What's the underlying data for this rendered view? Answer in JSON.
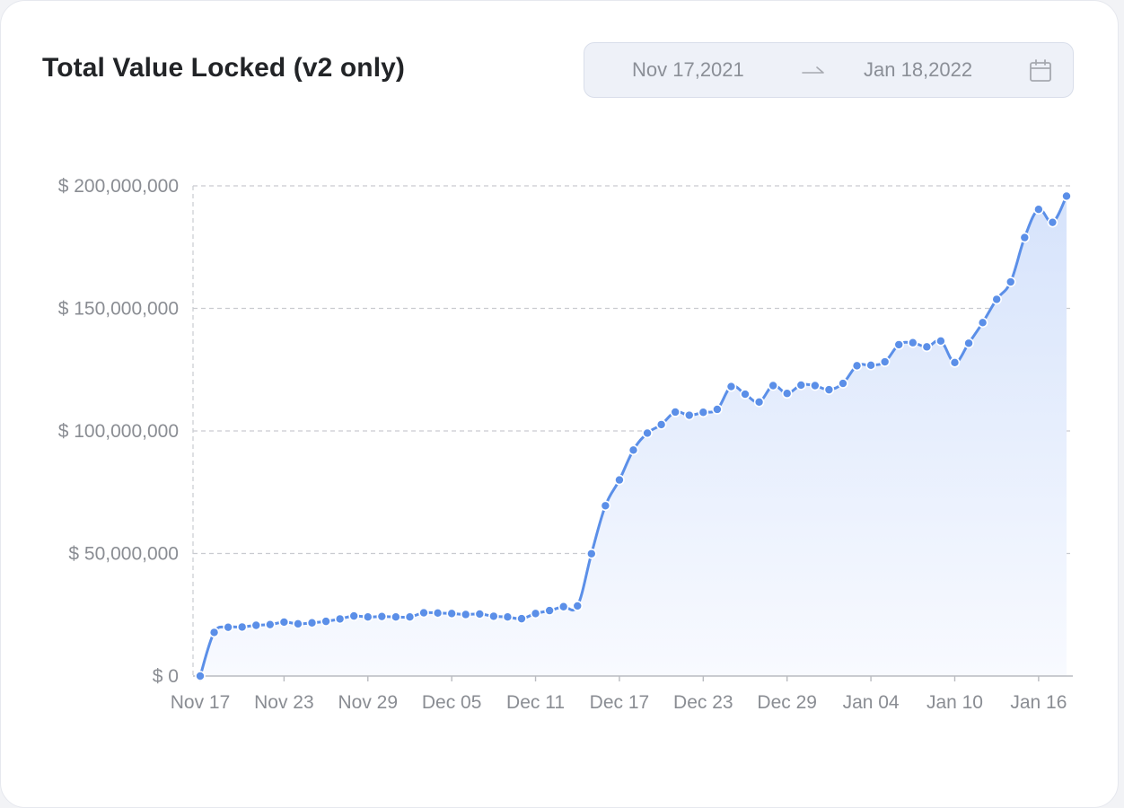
{
  "title": "Total Value Locked (v2 only)",
  "date_range": {
    "start": "Nov 17,2021",
    "end": "Jan 18,2022"
  },
  "icons": {
    "arrow": "arrow-right-icon",
    "calendar": "calendar-icon"
  },
  "colors": {
    "line": "#5b8fe8",
    "area_top": "#d6e3fb",
    "area_bottom": "#f8faff",
    "grid": "#c9cbd0",
    "axis_text": "#8a8d93"
  },
  "chart_data": {
    "type": "area",
    "title": "Total Value Locked (v2 only)",
    "xlabel": "",
    "ylabel": "",
    "x_start": "Nov 17",
    "x_ticks": [
      "Nov 17",
      "Nov 23",
      "Nov 29",
      "Dec 05",
      "Dec 11",
      "Dec 17",
      "Dec 23",
      "Dec 29",
      "Jan 04",
      "Jan 10",
      "Jan 16"
    ],
    "y_ticks": [
      0,
      50000000,
      100000000,
      150000000,
      200000000
    ],
    "y_tick_labels": [
      "$ 0",
      "$ 50,000,000",
      "$ 100,000,000",
      "$ 150,000,000",
      "$ 200,000,000"
    ],
    "ylim": [
      0,
      200000000
    ],
    "grid": true,
    "legend": "none",
    "series": [
      {
        "x": [
          "Nov 17",
          "Nov 18",
          "Nov 19",
          "Nov 20",
          "Nov 21",
          "Nov 22",
          "Nov 23",
          "Nov 24",
          "Nov 25",
          "Nov 26",
          "Nov 27",
          "Nov 28",
          "Nov 29",
          "Nov 30",
          "Dec 01",
          "Dec 02",
          "Dec 03",
          "Dec 04",
          "Dec 05",
          "Dec 06",
          "Dec 07",
          "Dec 08",
          "Dec 09",
          "Dec 10",
          "Dec 11",
          "Dec 12",
          "Dec 13",
          "Dec 14",
          "Dec 15",
          "Dec 16",
          "Dec 17",
          "Dec 18",
          "Dec 19",
          "Dec 20",
          "Dec 21",
          "Dec 22",
          "Dec 23",
          "Dec 24",
          "Dec 25",
          "Dec 26",
          "Dec 27",
          "Dec 28",
          "Dec 29",
          "Dec 30",
          "Dec 31",
          "Jan 01",
          "Jan 02",
          "Jan 03",
          "Jan 04",
          "Jan 05",
          "Jan 06",
          "Jan 07",
          "Jan 08",
          "Jan 09",
          "Jan 10",
          "Jan 11",
          "Jan 12",
          "Jan 13",
          "Jan 14",
          "Jan 15",
          "Jan 16",
          "Jan 17",
          "Jan 18"
        ],
        "values": [
          0,
          17800000,
          19900000,
          20000000,
          20700000,
          21000000,
          22000000,
          21300000,
          21700000,
          22300000,
          23300000,
          24500000,
          24100000,
          24300000,
          24100000,
          24100000,
          25800000,
          25700000,
          25500000,
          25100000,
          25300000,
          24400000,
          24100000,
          23400000,
          25500000,
          26700000,
          28300000,
          28600000,
          49900000,
          69500000,
          80000000,
          92200000,
          99100000,
          102600000,
          107700000,
          106400000,
          107600000,
          108800000,
          118100000,
          115000000,
          111800000,
          118500000,
          115300000,
          118700000,
          118500000,
          116800000,
          119400000,
          126600000,
          126800000,
          128200000,
          135200000,
          136000000,
          134300000,
          136700000,
          127900000,
          135800000,
          144200000,
          153700000,
          160800000,
          178900000,
          190400000,
          185100000,
          195800000
        ]
      }
    ]
  }
}
